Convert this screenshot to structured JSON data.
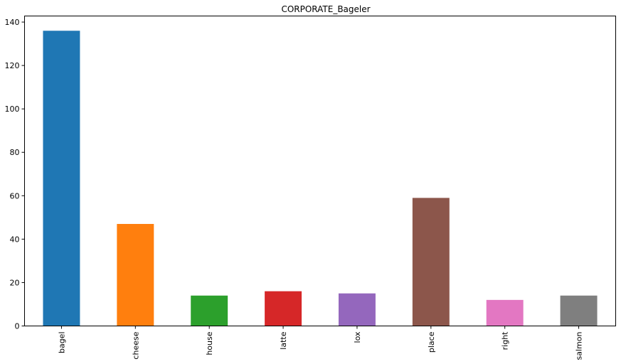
{
  "chart_data": {
    "type": "bar",
    "title": "CORPORATE_Bageler",
    "xlabel": "",
    "ylabel": "",
    "categories": [
      "bagel",
      "cheese",
      "house",
      "latte",
      "lox",
      "place",
      "right",
      "salmon"
    ],
    "values": [
      136,
      47,
      14,
      16,
      15,
      59,
      12,
      14
    ],
    "colors": [
      "#1f77b4",
      "#ff7f0e",
      "#2ca02c",
      "#d62728",
      "#9467bd",
      "#8c564b",
      "#e377c2",
      "#7f7f7f"
    ],
    "ylim": [
      0,
      142.8
    ],
    "yticks": [
      0,
      20,
      40,
      60,
      80,
      100,
      120,
      140
    ],
    "grid": false,
    "legend": "none"
  }
}
